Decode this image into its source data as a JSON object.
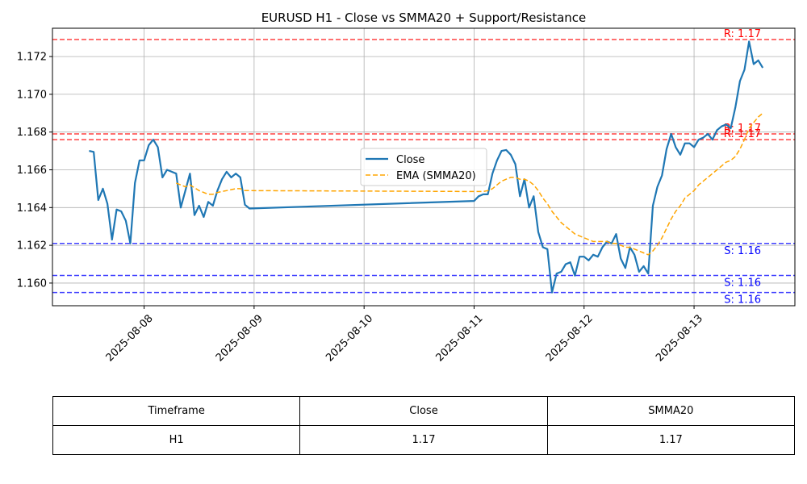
{
  "chart_data": {
    "type": "line",
    "title": "EURUSD H1 - Close vs SMMA20 + Support/Resistance",
    "xlabel": "",
    "ylabel": "",
    "x_ticks": [
      "2025-08-08",
      "2025-08-09",
      "2025-08-10",
      "2025-08-11",
      "2025-08-12",
      "2025-08-13"
    ],
    "y_ticks": [
      "1.160",
      "1.162",
      "1.164",
      "1.166",
      "1.168",
      "1.170",
      "1.172"
    ],
    "xlim": [
      "2025-08-07 04:00",
      "2025-08-13 22:00"
    ],
    "ylim": [
      1.1588,
      1.1735
    ],
    "grid": true,
    "legend_position": "upper-center",
    "series": [
      {
        "name": "Close",
        "color": "#1f77b4",
        "style": "solid",
        "points": [
          [
            "2025-08-07 12:00",
            1.167
          ],
          [
            "2025-08-07 13:00",
            1.16695
          ],
          [
            "2025-08-07 14:00",
            1.1644
          ],
          [
            "2025-08-07 15:00",
            1.165
          ],
          [
            "2025-08-07 16:00",
            1.1642
          ],
          [
            "2025-08-07 17:00",
            1.1623
          ],
          [
            "2025-08-07 18:00",
            1.1639
          ],
          [
            "2025-08-07 19:00",
            1.1638
          ],
          [
            "2025-08-07 20:00",
            1.1633
          ],
          [
            "2025-08-07 21:00",
            1.1621
          ],
          [
            "2025-08-07 22:00",
            1.1653
          ],
          [
            "2025-08-07 23:00",
            1.1665
          ],
          [
            "2025-08-08 00:00",
            1.1665
          ],
          [
            "2025-08-08 01:00",
            1.1673
          ],
          [
            "2025-08-08 02:00",
            1.1676
          ],
          [
            "2025-08-08 03:00",
            1.1672
          ],
          [
            "2025-08-08 04:00",
            1.1656
          ],
          [
            "2025-08-08 05:00",
            1.166
          ],
          [
            "2025-08-08 06:00",
            1.1659
          ],
          [
            "2025-08-08 07:00",
            1.1658
          ],
          [
            "2025-08-08 08:00",
            1.164
          ],
          [
            "2025-08-08 09:00",
            1.1649
          ],
          [
            "2025-08-08 10:00",
            1.1658
          ],
          [
            "2025-08-08 11:00",
            1.1636
          ],
          [
            "2025-08-08 12:00",
            1.1641
          ],
          [
            "2025-08-08 13:00",
            1.1635
          ],
          [
            "2025-08-08 14:00",
            1.1643
          ],
          [
            "2025-08-08 15:00",
            1.1641
          ],
          [
            "2025-08-08 16:00",
            1.1649
          ],
          [
            "2025-08-08 17:00",
            1.1655
          ],
          [
            "2025-08-08 18:00",
            1.1659
          ],
          [
            "2025-08-08 19:00",
            1.1656
          ],
          [
            "2025-08-08 20:00",
            1.1658
          ],
          [
            "2025-08-08 21:00",
            1.1656
          ],
          [
            "2025-08-08 22:00",
            1.16415
          ],
          [
            "2025-08-08 23:00",
            1.16395
          ],
          [
            "2025-08-11 00:00",
            1.16435
          ],
          [
            "2025-08-11 01:00",
            1.1646
          ],
          [
            "2025-08-11 02:00",
            1.1647
          ],
          [
            "2025-08-11 03:00",
            1.1647
          ],
          [
            "2025-08-11 04:00",
            1.1658
          ],
          [
            "2025-08-11 05:00",
            1.1665
          ],
          [
            "2025-08-11 06:00",
            1.167
          ],
          [
            "2025-08-11 07:00",
            1.16705
          ],
          [
            "2025-08-11 08:00",
            1.1668
          ],
          [
            "2025-08-11 09:00",
            1.1663
          ],
          [
            "2025-08-11 10:00",
            1.1646
          ],
          [
            "2025-08-11 11:00",
            1.1655
          ],
          [
            "2025-08-11 12:00",
            1.164
          ],
          [
            "2025-08-11 13:00",
            1.1646
          ],
          [
            "2025-08-11 14:00",
            1.1627
          ],
          [
            "2025-08-11 15:00",
            1.1619
          ],
          [
            "2025-08-11 16:00",
            1.1618
          ],
          [
            "2025-08-11 17:00",
            1.1595
          ],
          [
            "2025-08-11 18:00",
            1.1605
          ],
          [
            "2025-08-11 19:00",
            1.1606
          ],
          [
            "2025-08-11 20:00",
            1.161
          ],
          [
            "2025-08-11 21:00",
            1.1611
          ],
          [
            "2025-08-11 22:00",
            1.1604
          ],
          [
            "2025-08-11 23:00",
            1.1614
          ],
          [
            "2025-08-12 00:00",
            1.1614
          ],
          [
            "2025-08-12 01:00",
            1.1612
          ],
          [
            "2025-08-12 02:00",
            1.1615
          ],
          [
            "2025-08-12 03:00",
            1.1614
          ],
          [
            "2025-08-12 04:00",
            1.1619
          ],
          [
            "2025-08-12 05:00",
            1.1622
          ],
          [
            "2025-08-12 06:00",
            1.1621
          ],
          [
            "2025-08-12 07:00",
            1.1626
          ],
          [
            "2025-08-12 08:00",
            1.1613
          ],
          [
            "2025-08-12 09:00",
            1.1608
          ],
          [
            "2025-08-12 10:00",
            1.1619
          ],
          [
            "2025-08-12 11:00",
            1.1615
          ],
          [
            "2025-08-12 12:00",
            1.1606
          ],
          [
            "2025-08-12 13:00",
            1.1609
          ],
          [
            "2025-08-12 14:00",
            1.1605
          ],
          [
            "2025-08-12 15:00",
            1.1641
          ],
          [
            "2025-08-12 16:00",
            1.1651
          ],
          [
            "2025-08-12 17:00",
            1.1657
          ],
          [
            "2025-08-12 18:00",
            1.1671
          ],
          [
            "2025-08-12 19:00",
            1.1679
          ],
          [
            "2025-08-12 20:00",
            1.1672
          ],
          [
            "2025-08-12 21:00",
            1.1668
          ],
          [
            "2025-08-12 22:00",
            1.1674
          ],
          [
            "2025-08-12 23:00",
            1.1674
          ],
          [
            "2025-08-13 00:00",
            1.1672
          ],
          [
            "2025-08-13 01:00",
            1.1676
          ],
          [
            "2025-08-13 02:00",
            1.1677
          ],
          [
            "2025-08-13 03:00",
            1.1679
          ],
          [
            "2025-08-13 04:00",
            1.1676
          ],
          [
            "2025-08-13 05:00",
            1.1681
          ],
          [
            "2025-08-13 06:00",
            1.1683
          ],
          [
            "2025-08-13 07:00",
            1.1684
          ],
          [
            "2025-08-13 08:00",
            1.1682
          ],
          [
            "2025-08-13 09:00",
            1.1693
          ],
          [
            "2025-08-13 10:00",
            1.1707
          ],
          [
            "2025-08-13 11:00",
            1.1713
          ],
          [
            "2025-08-13 12:00",
            1.1728
          ],
          [
            "2025-08-13 13:00",
            1.1716
          ],
          [
            "2025-08-13 14:00",
            1.1718
          ],
          [
            "2025-08-13 15:00",
            1.1714
          ]
        ]
      },
      {
        "name": "EMA (SMMA20)",
        "color": "#ffa500",
        "style": "dashed",
        "points": [
          [
            "2025-08-08 07:00",
            1.1653
          ],
          [
            "2025-08-08 08:00",
            1.1652
          ],
          [
            "2025-08-08 09:00",
            1.1651
          ],
          [
            "2025-08-08 10:00",
            1.1652
          ],
          [
            "2025-08-08 11:00",
            1.16505
          ],
          [
            "2025-08-08 12:00",
            1.1649
          ],
          [
            "2025-08-08 13:00",
            1.1648
          ],
          [
            "2025-08-08 14:00",
            1.1647
          ],
          [
            "2025-08-08 15:00",
            1.1647
          ],
          [
            "2025-08-08 16:00",
            1.1648
          ],
          [
            "2025-08-08 17:00",
            1.16485
          ],
          [
            "2025-08-08 18:00",
            1.1649
          ],
          [
            "2025-08-08 19:00",
            1.16495
          ],
          [
            "2025-08-08 20:00",
            1.165
          ],
          [
            "2025-08-08 21:00",
            1.165
          ],
          [
            "2025-08-08 22:00",
            1.1649
          ],
          [
            "2025-08-08 23:00",
            1.1649
          ],
          [
            "2025-08-11 00:00",
            1.16485
          ],
          [
            "2025-08-11 02:00",
            1.16485
          ],
          [
            "2025-08-11 03:00",
            1.1649
          ],
          [
            "2025-08-11 04:00",
            1.165
          ],
          [
            "2025-08-11 05:00",
            1.1652
          ],
          [
            "2025-08-11 06:00",
            1.1654
          ],
          [
            "2025-08-11 07:00",
            1.1655
          ],
          [
            "2025-08-11 08:00",
            1.1656
          ],
          [
            "2025-08-11 09:00",
            1.1656
          ],
          [
            "2025-08-11 10:00",
            1.1655
          ],
          [
            "2025-08-11 11:00",
            1.1655
          ],
          [
            "2025-08-11 12:00",
            1.1654
          ],
          [
            "2025-08-11 13:00",
            1.1652
          ],
          [
            "2025-08-11 14:00",
            1.1649
          ],
          [
            "2025-08-11 15:00",
            1.1645
          ],
          [
            "2025-08-11 16:00",
            1.1642
          ],
          [
            "2025-08-11 17:00",
            1.1638
          ],
          [
            "2025-08-11 18:00",
            1.1635
          ],
          [
            "2025-08-11 19:00",
            1.1632
          ],
          [
            "2025-08-11 20:00",
            1.163
          ],
          [
            "2025-08-11 21:00",
            1.1628
          ],
          [
            "2025-08-11 22:00",
            1.1626
          ],
          [
            "2025-08-11 23:00",
            1.1625
          ],
          [
            "2025-08-12 00:00",
            1.1624
          ],
          [
            "2025-08-12 01:00",
            1.1623
          ],
          [
            "2025-08-12 02:00",
            1.1622
          ],
          [
            "2025-08-12 03:00",
            1.1622
          ],
          [
            "2025-08-12 04:00",
            1.1622
          ],
          [
            "2025-08-12 05:00",
            1.1622
          ],
          [
            "2025-08-12 06:00",
            1.1621
          ],
          [
            "2025-08-12 07:00",
            1.1621
          ],
          [
            "2025-08-12 08:00",
            1.162
          ],
          [
            "2025-08-12 09:00",
            1.1619
          ],
          [
            "2025-08-12 10:00",
            1.1619
          ],
          [
            "2025-08-12 11:00",
            1.1618
          ],
          [
            "2025-08-12 12:00",
            1.1617
          ],
          [
            "2025-08-12 13:00",
            1.1616
          ],
          [
            "2025-08-12 14:00",
            1.1615
          ],
          [
            "2025-08-12 15:00",
            1.1617
          ],
          [
            "2025-08-12 16:00",
            1.162
          ],
          [
            "2025-08-12 17:00",
            1.1624
          ],
          [
            "2025-08-12 18:00",
            1.1629
          ],
          [
            "2025-08-12 19:00",
            1.1634
          ],
          [
            "2025-08-12 20:00",
            1.1638
          ],
          [
            "2025-08-12 21:00",
            1.1641
          ],
          [
            "2025-08-12 22:00",
            1.1645
          ],
          [
            "2025-08-12 23:00",
            1.1647
          ],
          [
            "2025-08-13 00:00",
            1.1649
          ],
          [
            "2025-08-13 01:00",
            1.1652
          ],
          [
            "2025-08-13 02:00",
            1.1654
          ],
          [
            "2025-08-13 03:00",
            1.1656
          ],
          [
            "2025-08-13 04:00",
            1.1658
          ],
          [
            "2025-08-13 05:00",
            1.166
          ],
          [
            "2025-08-13 06:00",
            1.1662
          ],
          [
            "2025-08-13 07:00",
            1.1664
          ],
          [
            "2025-08-13 08:00",
            1.1665
          ],
          [
            "2025-08-13 09:00",
            1.1667
          ],
          [
            "2025-08-13 10:00",
            1.1671
          ],
          [
            "2025-08-13 11:00",
            1.1676
          ],
          [
            "2025-08-13 12:00",
            1.1682
          ],
          [
            "2025-08-13 13:00",
            1.1685
          ],
          [
            "2025-08-13 14:00",
            1.1688
          ],
          [
            "2025-08-13 15:00",
            1.169
          ]
        ]
      }
    ],
    "levels": [
      {
        "kind": "resistance",
        "value": 1.1729,
        "label": "R: 1.17",
        "color": "#ff0000"
      },
      {
        "kind": "resistance",
        "value": 1.1679,
        "label": "R: 1.17",
        "color": "#ff0000"
      },
      {
        "kind": "resistance",
        "value": 1.1676,
        "label": "R: 1.17",
        "color": "#ff0000"
      },
      {
        "kind": "support",
        "value": 1.1621,
        "label": "S: 1.16",
        "color": "#0000ff"
      },
      {
        "kind": "support",
        "value": 1.1604,
        "label": "S: 1.16",
        "color": "#0000ff"
      },
      {
        "kind": "support",
        "value": 1.1595,
        "label": "S: 1.16",
        "color": "#0000ff"
      }
    ]
  },
  "table": {
    "headers": [
      "Timeframe",
      "Close",
      "SMMA20"
    ],
    "rows": [
      [
        "H1",
        "1.17",
        "1.17"
      ]
    ]
  }
}
